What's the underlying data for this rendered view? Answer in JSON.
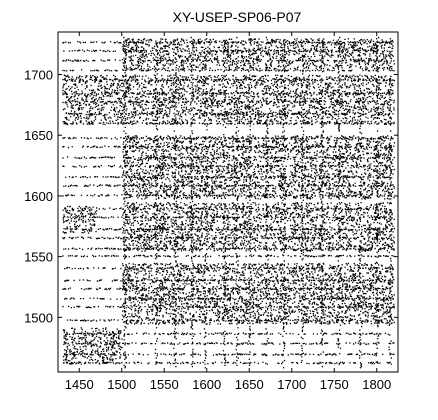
{
  "chart_data": {
    "type": "scatter",
    "title": "XY-USEP-SP06-P07",
    "xlabel": "",
    "ylabel": "",
    "xlim": [
      1425,
      1825
    ],
    "ylim": [
      1455,
      1735
    ],
    "xticks": [
      1450,
      1500,
      1550,
      1600,
      1650,
      1700,
      1750,
      1800
    ],
    "yticks": [
      1500,
      1550,
      1600,
      1650,
      1700
    ],
    "grid": false,
    "legend": "none",
    "marker_color": "#000000",
    "series": [
      {
        "points_note_free": true,
        "x_ranges": [
          [
            1430,
            1820
          ]
        ],
        "dense_blocks": [
          {
            "x": [
              1430,
              1500
            ],
            "y": [
              1462,
              1492
            ]
          },
          {
            "x": [
              1430,
              1500
            ],
            "y": [
              1660,
              1700
            ]
          },
          {
            "x": [
              1430,
              1470
            ],
            "y": [
              1570,
              1592
            ]
          },
          {
            "x": [
              1500,
              1820
            ],
            "y": [
              1598,
              1650
            ]
          },
          {
            "x": [
              1500,
              1820
            ],
            "y": [
              1495,
              1545
            ]
          },
          {
            "x": [
              1500,
              1820
            ],
            "y": [
              1555,
              1595
            ]
          },
          {
            "x": [
              1500,
              1820
            ],
            "y": [
              1660,
              1700
            ]
          },
          {
            "x": [
              1500,
              1820
            ],
            "y": [
              1705,
              1730
            ]
          }
        ],
        "dense_columns": [
          1503,
          1540,
          1562,
          1582,
          1598,
          1620,
          1635,
          1650,
          1670,
          1690,
          1712,
          1735,
          1755,
          1780,
          1800,
          1815
        ],
        "sparse_rows": [
          1463,
          1470,
          1479,
          1487,
          1498,
          1509,
          1516,
          1524,
          1531,
          1541,
          1551,
          1557,
          1566,
          1573,
          1583,
          1590,
          1601,
          1609,
          1616,
          1625,
          1632,
          1641,
          1648,
          1660,
          1668,
          1678,
          1685,
          1696,
          1704,
          1712,
          1720,
          1727
        ]
      }
    ]
  }
}
